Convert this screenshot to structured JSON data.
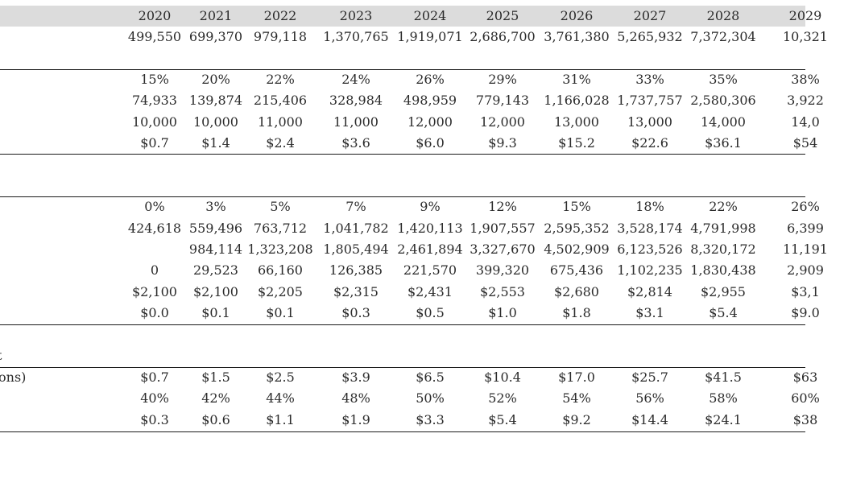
{
  "columns": [
    "2020",
    "2021",
    "2022",
    "2023",
    "2024",
    "2025",
    "2026",
    "2027",
    "2028",
    "2029"
  ],
  "sections": [
    {
      "name": "base",
      "rows": [
        {
          "label": "",
          "values": [
            "499,550",
            "699,370",
            "979,118",
            "1,370,765",
            "1,919,071",
            "2,686,700",
            "3,761,380",
            "5,265,932",
            "7,372,304",
            "10,321"
          ]
        }
      ]
    },
    {
      "name": "section-2",
      "rows": [
        {
          "label": "",
          "values": [
            "15%",
            "20%",
            "22%",
            "24%",
            "26%",
            "29%",
            "31%",
            "33%",
            "35%",
            "38%"
          ]
        },
        {
          "label": "",
          "values": [
            "74,933",
            "139,874",
            "215,406",
            "328,984",
            "498,959",
            "779,143",
            "1,166,028",
            "1,737,757",
            "2,580,306",
            "3,922"
          ]
        },
        {
          "label": "",
          "values": [
            "10,000",
            "10,000",
            "11,000",
            "11,000",
            "12,000",
            "12,000",
            "13,000",
            "13,000",
            "14,000",
            "14,0"
          ]
        },
        {
          "label": "",
          "values": [
            "$0.7",
            "$1.4",
            "$2.4",
            "$3.6",
            "$6.0",
            "$9.3",
            "$15.2",
            "$22.6",
            "$36.1",
            "$54"
          ]
        }
      ]
    },
    {
      "name": "section-3",
      "rows": [
        {
          "label": "",
          "values": [
            "0%",
            "3%",
            "5%",
            "7%",
            "9%",
            "12%",
            "15%",
            "18%",
            "22%",
            "26%"
          ]
        },
        {
          "label": "",
          "values": [
            "424,618",
            "559,496",
            "763,712",
            "1,041,782",
            "1,420,113",
            "1,907,557",
            "2,595,352",
            "3,528,174",
            "4,791,998",
            "6,399"
          ]
        },
        {
          "label": "",
          "values": [
            "",
            "984,114",
            "1,323,208",
            "1,805,494",
            "2,461,894",
            "3,327,670",
            "4,502,909",
            "6,123,526",
            "8,320,172",
            "11,191"
          ]
        },
        {
          "label": "",
          "values": [
            "0",
            "29,523",
            "66,160",
            "126,385",
            "221,570",
            "399,320",
            "675,436",
            "1,102,235",
            "1,830,438",
            "2,909"
          ]
        },
        {
          "label": "",
          "values": [
            "$2,100",
            "$2,100",
            "$2,205",
            "$2,315",
            "$2,431",
            "$2,553",
            "$2,680",
            "$2,814",
            "$2,955",
            "$3,1"
          ]
        },
        {
          "label": "",
          "values": [
            "$0.0",
            "$0.1",
            "$0.1",
            "$0.3",
            "$0.5",
            "$1.0",
            "$1.8",
            "$3.1",
            "$5.4",
            "$9.0"
          ]
        }
      ]
    },
    {
      "name": "section-4",
      "rows": [
        {
          "label": "ons)",
          "values": [
            "$0.7",
            "$1.5",
            "$2.5",
            "$3.9",
            "$6.5",
            "$10.4",
            "$17.0",
            "$25.7",
            "$41.5",
            "$63"
          ]
        },
        {
          "label": "",
          "values": [
            "40%",
            "42%",
            "44%",
            "48%",
            "50%",
            "52%",
            "54%",
            "56%",
            "58%",
            "60%"
          ]
        },
        {
          "label": "",
          "values": [
            "$0.3",
            "$0.6",
            "$1.1",
            "$1.9",
            "$3.3",
            "$5.4",
            "$9.2",
            "$14.4",
            "$24.1",
            "$38"
          ]
        }
      ]
    }
  ],
  "section4_heading": "t"
}
